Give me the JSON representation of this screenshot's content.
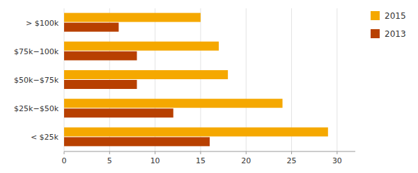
{
  "chart_data": {
    "type": "bar",
    "orientation": "horizontal",
    "categories": [
      "> $100k",
      "$75k−100k",
      "$50k−$75k",
      "$25k−$50k",
      "< $25k"
    ],
    "series": [
      {
        "name": "2015",
        "color": "#F5A800",
        "values": [
          15,
          17,
          18,
          24,
          29
        ]
      },
      {
        "name": "2013",
        "color": "#B84000",
        "values": [
          6,
          8,
          8,
          12,
          16
        ]
      }
    ],
    "xlim": [
      0,
      32
    ],
    "xticks": [
      0,
      5,
      10,
      15,
      20,
      25,
      30
    ],
    "grid": true,
    "legend": "upper right"
  }
}
